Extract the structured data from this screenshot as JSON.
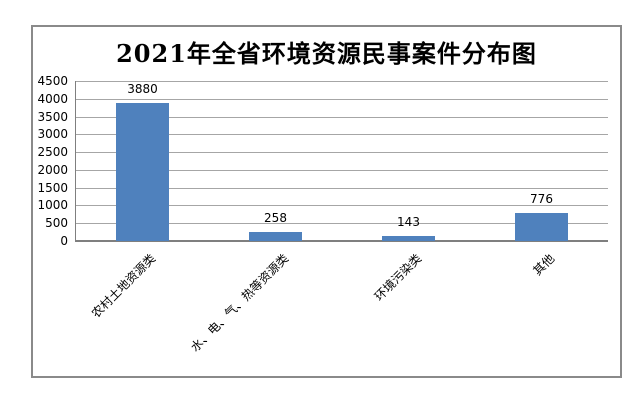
{
  "chart_data": {
    "type": "bar",
    "title": "2021年全省环境资源民事案件分布图",
    "categories": [
      "农村土地资源类",
      "水、电、气、热等资源类",
      "环境污染类",
      "其他"
    ],
    "values": [
      3880,
      258,
      143,
      776
    ],
    "data_labels": [
      "3880",
      "258",
      "143",
      "776"
    ],
    "ylim": [
      0,
      4500
    ],
    "yticks": [
      0,
      500,
      1000,
      1500,
      2000,
      2500,
      3000,
      3500,
      4000,
      4500
    ],
    "xlabel": "",
    "ylabel": "",
    "grid": true,
    "legend_position": "none",
    "colors": {
      "bar": "#4f81bd",
      "gridline": "#a6a6a6",
      "axis": "#7f7f7f",
      "frame_border": "#8a8a8a",
      "text": "#000000",
      "background": "#ffffff"
    }
  }
}
